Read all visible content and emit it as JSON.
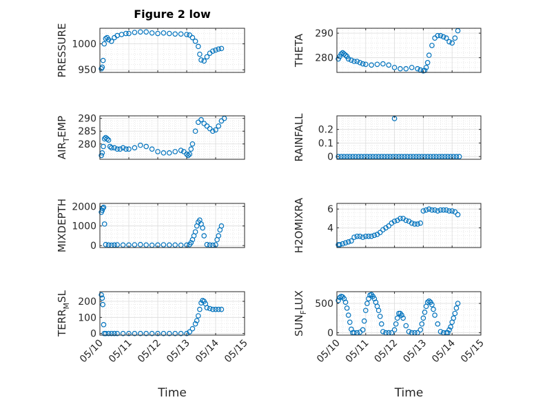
{
  "figure": {
    "title": "Figure 2 low",
    "marker_color": "#0072BD"
  },
  "x_axis": {
    "label": "Time",
    "ticks": [
      {
        "value": 0,
        "label": "05/10"
      },
      {
        "value": 1,
        "label": "05/11"
      },
      {
        "value": 2,
        "label": "05/12"
      },
      {
        "value": 3,
        "label": "05/13"
      },
      {
        "value": 4,
        "label": "05/14"
      },
      {
        "value": 5,
        "label": "05/15"
      }
    ]
  },
  "chart_data": [
    {
      "type": "scatter",
      "ylabel": "PRESSURE",
      "ylabel_sub": "",
      "ylabel_tail": "",
      "ylim": [
        945,
        1030
      ],
      "yticks": [
        950,
        1000
      ],
      "ytick_labels": [
        "950",
        "1000"
      ],
      "grid": true,
      "show_x_tick_labels": false,
      "show_x_label": false,
      "x": [
        0.05,
        0.08,
        0.11,
        0.15,
        0.2,
        0.25,
        0.3,
        0.4,
        0.5,
        0.6,
        0.75,
        0.9,
        1.0,
        1.2,
        1.4,
        1.6,
        1.8,
        2.0,
        2.2,
        2.4,
        2.6,
        2.8,
        3.0,
        3.1,
        3.2,
        3.3,
        3.4,
        3.45,
        3.5,
        3.6,
        3.7,
        3.8,
        3.9,
        4.0,
        4.1,
        4.2
      ],
      "y": [
        952,
        955,
        968,
        1000,
        1010,
        1012,
        1008,
        1005,
        1012,
        1016,
        1018,
        1020,
        1020,
        1022,
        1023,
        1023,
        1021,
        1020,
        1021,
        1020,
        1019,
        1019,
        1018,
        1017,
        1012,
        1005,
        995,
        980,
        969,
        967,
        975,
        982,
        986,
        988,
        990,
        991
      ]
    },
    {
      "type": "scatter",
      "ylabel": "THETA",
      "ylabel_sub": "",
      "ylabel_tail": "",
      "ylim": [
        274,
        292
      ],
      "yticks": [
        280,
        290
      ],
      "ytick_labels": [
        "280",
        "290"
      ],
      "grid": true,
      "show_x_tick_labels": false,
      "show_x_label": false,
      "x": [
        0.05,
        0.1,
        0.15,
        0.2,
        0.25,
        0.3,
        0.35,
        0.4,
        0.5,
        0.6,
        0.7,
        0.8,
        0.9,
        1.0,
        1.2,
        1.4,
        1.6,
        1.8,
        2.0,
        2.2,
        2.4,
        2.6,
        2.8,
        2.9,
        3.0,
        3.05,
        3.1,
        3.15,
        3.2,
        3.3,
        3.4,
        3.5,
        3.6,
        3.7,
        3.8,
        3.9,
        4.0,
        4.1,
        4.2
      ],
      "y": [
        279.5,
        280.5,
        281.5,
        282,
        281.5,
        281,
        280.5,
        279.5,
        279,
        278.5,
        278.5,
        278,
        277.5,
        277.3,
        277,
        277.3,
        277.5,
        277,
        276,
        275.5,
        275.5,
        276,
        275.5,
        275,
        274.6,
        274.8,
        276,
        278,
        281,
        285,
        288,
        289,
        289,
        288.5,
        288,
        286.5,
        286,
        288,
        291
      ]
    },
    {
      "type": "scatter",
      "ylabel": "AIR",
      "ylabel_sub": "T",
      "ylabel_tail": "EMP",
      "ylim": [
        274,
        291
      ],
      "yticks": [
        280,
        285,
        290
      ],
      "ytick_labels": [
        "280",
        "285",
        "290"
      ],
      "grid": true,
      "show_x_tick_labels": false,
      "show_x_label": false,
      "x": [
        0.05,
        0.08,
        0.12,
        0.16,
        0.2,
        0.25,
        0.3,
        0.35,
        0.4,
        0.5,
        0.6,
        0.7,
        0.8,
        0.9,
        1.0,
        1.2,
        1.4,
        1.6,
        1.8,
        2.0,
        2.2,
        2.4,
        2.6,
        2.8,
        2.9,
        3.0,
        3.05,
        3.1,
        3.15,
        3.2,
        3.3,
        3.4,
        3.5,
        3.6,
        3.7,
        3.8,
        3.9,
        4.0,
        4.1,
        4.2,
        4.3
      ],
      "y": [
        275.5,
        276.5,
        279,
        282,
        282.5,
        282,
        281.5,
        279,
        278.5,
        278.5,
        278,
        278,
        278.5,
        278,
        278,
        278.5,
        279.5,
        279,
        278,
        277,
        276.5,
        276.5,
        277,
        277.5,
        277,
        276,
        275.5,
        276,
        278,
        280,
        285,
        288.5,
        289.5,
        288,
        287,
        286,
        285,
        285.5,
        287,
        289,
        290
      ]
    },
    {
      "type": "scatter",
      "ylabel": "RAINFALL",
      "ylabel_sub": "",
      "ylabel_tail": "",
      "ylim": [
        -0.02,
        0.3
      ],
      "yticks": [
        0,
        0.1,
        0.2
      ],
      "ytick_labels": [
        "0",
        "0.1",
        "0.2"
      ],
      "grid": true,
      "show_x_tick_labels": false,
      "show_x_label": false,
      "x": [
        0.05,
        0.15,
        0.25,
        0.35,
        0.45,
        0.55,
        0.65,
        0.75,
        0.85,
        0.95,
        1.05,
        1.15,
        1.25,
        1.35,
        1.45,
        1.55,
        1.65,
        1.75,
        1.85,
        1.95,
        2.05,
        2.15,
        2.25,
        2.35,
        2.45,
        2.55,
        2.65,
        2.75,
        2.85,
        2.95,
        3.05,
        3.15,
        3.25,
        3.35,
        3.45,
        3.55,
        3.65,
        3.75,
        3.85,
        3.95,
        4.05,
        4.15,
        4.25,
        2.0
      ],
      "y": [
        0,
        0,
        0,
        0,
        0,
        0,
        0,
        0,
        0,
        0,
        0,
        0,
        0,
        0,
        0,
        0,
        0,
        0,
        0,
        0,
        0,
        0,
        0,
        0,
        0,
        0,
        0,
        0,
        0,
        0,
        0,
        0,
        0,
        0,
        0,
        0,
        0,
        0,
        0,
        0,
        0,
        0,
        0,
        0.28
      ]
    },
    {
      "type": "scatter",
      "ylabel": "MIXDEPTH",
      "ylabel_sub": "",
      "ylabel_tail": "",
      "ylim": [
        -100,
        2150
      ],
      "yticks": [
        0,
        1000,
        2000
      ],
      "ytick_labels": [
        "0",
        "1000",
        "2000"
      ],
      "grid": true,
      "show_x_tick_labels": false,
      "show_x_label": false,
      "x": [
        0.05,
        0.08,
        0.1,
        0.13,
        0.16,
        0.2,
        0.3,
        0.4,
        0.5,
        0.6,
        0.8,
        1.0,
        1.2,
        1.4,
        1.6,
        1.8,
        2.0,
        2.2,
        2.4,
        2.6,
        2.8,
        3.0,
        3.1,
        3.15,
        3.2,
        3.25,
        3.3,
        3.35,
        3.4,
        3.45,
        3.5,
        3.55,
        3.6,
        3.7,
        3.8,
        3.9,
        4.0,
        4.05,
        4.1,
        4.15,
        4.2
      ],
      "y": [
        1700,
        1800,
        1900,
        1950,
        1100,
        50,
        30,
        20,
        30,
        40,
        30,
        30,
        40,
        50,
        30,
        20,
        30,
        40,
        30,
        30,
        20,
        30,
        50,
        150,
        300,
        500,
        700,
        1000,
        1200,
        1300,
        1100,
        900,
        500,
        50,
        30,
        20,
        40,
        300,
        500,
        800,
        1000
      ]
    },
    {
      "type": "scatter",
      "ylabel": "H2OMIXRA",
      "ylabel_sub": "",
      "ylabel_tail": "",
      "ylim": [
        1.9,
        6.6
      ],
      "yticks": [
        4,
        6
      ],
      "ytick_labels": [
        "4",
        "6"
      ],
      "grid": true,
      "show_x_tick_labels": false,
      "show_x_label": false,
      "x": [
        0.05,
        0.1,
        0.2,
        0.3,
        0.4,
        0.5,
        0.6,
        0.7,
        0.8,
        0.9,
        1.0,
        1.1,
        1.2,
        1.3,
        1.4,
        1.5,
        1.6,
        1.7,
        1.8,
        1.9,
        2.0,
        2.1,
        2.2,
        2.3,
        2.4,
        2.5,
        2.6,
        2.7,
        2.8,
        2.9,
        3.0,
        3.1,
        3.2,
        3.3,
        3.4,
        3.5,
        3.6,
        3.7,
        3.8,
        3.9,
        4.0,
        4.1,
        4.2
      ],
      "y": [
        2.2,
        2.2,
        2.3,
        2.4,
        2.5,
        2.6,
        3.0,
        3.1,
        3.1,
        3.0,
        3.1,
        3.1,
        3.1,
        3.2,
        3.3,
        3.5,
        3.8,
        4.0,
        4.2,
        4.5,
        4.7,
        4.8,
        5.0,
        5.0,
        4.8,
        4.7,
        4.5,
        4.4,
        4.4,
        4.5,
        5.8,
        5.9,
        6.0,
        5.9,
        5.9,
        5.8,
        5.9,
        5.9,
        5.9,
        5.8,
        5.8,
        5.7,
        5.4
      ]
    },
    {
      "type": "scatter",
      "ylabel": "TERR",
      "ylabel_sub": "M",
      "ylabel_tail": "SL",
      "ylim": [
        -10,
        260
      ],
      "yticks": [
        0,
        100,
        200
      ],
      "ytick_labels": [
        "0",
        "100",
        "200"
      ],
      "grid": true,
      "show_x_tick_labels": true,
      "show_x_label": true,
      "x": [
        0.05,
        0.08,
        0.1,
        0.13,
        0.15,
        0.2,
        0.3,
        0.4,
        0.5,
        0.6,
        0.8,
        1.0,
        1.2,
        1.4,
        1.6,
        1.8,
        2.0,
        2.2,
        2.4,
        2.6,
        2.8,
        3.0,
        3.1,
        3.2,
        3.3,
        3.35,
        3.4,
        3.45,
        3.5,
        3.55,
        3.6,
        3.65,
        3.7,
        3.8,
        3.9,
        4.0,
        4.1,
        4.2
      ],
      "y": [
        240,
        220,
        180,
        55,
        0,
        0,
        0,
        0,
        0,
        0,
        0,
        0,
        0,
        0,
        0,
        0,
        0,
        0,
        0,
        0,
        0,
        0,
        10,
        30,
        60,
        80,
        110,
        150,
        190,
        205,
        200,
        185,
        160,
        155,
        150,
        150,
        150,
        150
      ]
    },
    {
      "type": "scatter",
      "ylabel": "SUN",
      "ylabel_sub": "F",
      "ylabel_tail": "LUX",
      "ylim": [
        -40,
        700
      ],
      "yticks": [
        0,
        500
      ],
      "ytick_labels": [
        "0",
        "500"
      ],
      "grid": true,
      "show_x_tick_labels": true,
      "show_x_label": true,
      "x": [
        0.05,
        0.1,
        0.15,
        0.2,
        0.25,
        0.3,
        0.35,
        0.4,
        0.45,
        0.5,
        0.55,
        0.6,
        0.7,
        0.8,
        0.9,
        0.95,
        1.0,
        1.05,
        1.1,
        1.15,
        1.2,
        1.25,
        1.3,
        1.35,
        1.4,
        1.45,
        1.5,
        1.55,
        1.6,
        1.7,
        1.8,
        1.9,
        2.0,
        2.05,
        2.1,
        2.15,
        2.2,
        2.25,
        2.3,
        2.4,
        2.5,
        2.6,
        2.7,
        2.8,
        2.9,
        2.95,
        3.0,
        3.05,
        3.1,
        3.15,
        3.2,
        3.25,
        3.3,
        3.35,
        3.4,
        3.5,
        3.6,
        3.7,
        3.8,
        3.85,
        3.9,
        3.95,
        4.0,
        4.05,
        4.1,
        4.15,
        4.2
      ],
      "y": [
        550,
        600,
        620,
        610,
        580,
        520,
        420,
        300,
        180,
        60,
        0,
        0,
        0,
        10,
        50,
        200,
        380,
        500,
        580,
        640,
        650,
        620,
        580,
        520,
        450,
        380,
        280,
        150,
        20,
        0,
        0,
        0,
        50,
        150,
        250,
        330,
        330,
        300,
        250,
        120,
        20,
        0,
        0,
        0,
        50,
        150,
        250,
        350,
        450,
        520,
        540,
        520,
        480,
        400,
        300,
        150,
        20,
        0,
        0,
        0,
        50,
        100,
        180,
        250,
        330,
        420,
        500
      ]
    }
  ]
}
